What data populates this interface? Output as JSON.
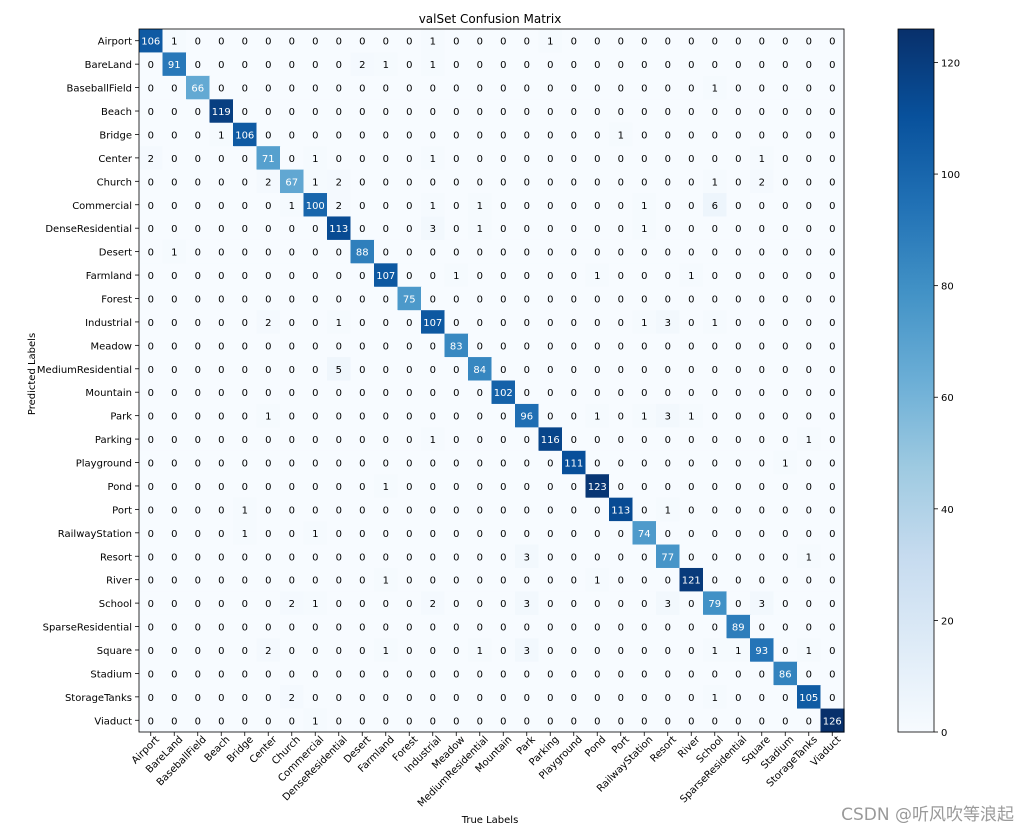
{
  "chart_data": {
    "type": "heatmap",
    "title": "valSet Confusion Matrix",
    "xlabel": "True Labels",
    "ylabel": "Predicted Labels",
    "labels": [
      "Airport",
      "BareLand",
      "BaseballField",
      "Beach",
      "Bridge",
      "Center",
      "Church",
      "Commercial",
      "DenseResidential",
      "Desert",
      "Farmland",
      "Forest",
      "Industrial",
      "Meadow",
      "MediumResidential",
      "Mountain",
      "Park",
      "Parking",
      "Playground",
      "Pond",
      "Port",
      "RailwayStation",
      "Resort",
      "River",
      "School",
      "SparseResidential",
      "Square",
      "Stadium",
      "StorageTanks",
      "Viaduct"
    ],
    "matrix": [
      [
        106,
        1,
        0,
        0,
        0,
        0,
        0,
        0,
        0,
        0,
        0,
        0,
        1,
        0,
        0,
        0,
        0,
        1,
        0,
        0,
        0,
        0,
        0,
        0,
        0,
        0,
        0,
        0,
        0,
        0
      ],
      [
        0,
        91,
        0,
        0,
        0,
        0,
        0,
        0,
        0,
        2,
        1,
        0,
        1,
        0,
        0,
        0,
        0,
        0,
        0,
        0,
        0,
        0,
        0,
        0,
        0,
        0,
        0,
        0,
        0,
        0
      ],
      [
        0,
        0,
        66,
        0,
        0,
        0,
        0,
        0,
        0,
        0,
        0,
        0,
        0,
        0,
        0,
        0,
        0,
        0,
        0,
        0,
        0,
        0,
        0,
        0,
        1,
        0,
        0,
        0,
        0,
        0
      ],
      [
        0,
        0,
        0,
        119,
        0,
        0,
        0,
        0,
        0,
        0,
        0,
        0,
        0,
        0,
        0,
        0,
        0,
        0,
        0,
        0,
        0,
        0,
        0,
        0,
        0,
        0,
        0,
        0,
        0,
        0
      ],
      [
        0,
        0,
        0,
        1,
        106,
        0,
        0,
        0,
        0,
        0,
        0,
        0,
        0,
        0,
        0,
        0,
        0,
        0,
        0,
        0,
        1,
        0,
        0,
        0,
        0,
        0,
        0,
        0,
        0,
        0
      ],
      [
        2,
        0,
        0,
        0,
        0,
        71,
        0,
        1,
        0,
        0,
        0,
        0,
        1,
        0,
        0,
        0,
        0,
        0,
        0,
        0,
        0,
        0,
        0,
        0,
        0,
        0,
        1,
        0,
        0,
        0
      ],
      [
        0,
        0,
        0,
        0,
        0,
        2,
        67,
        1,
        2,
        0,
        0,
        0,
        0,
        0,
        0,
        0,
        0,
        0,
        0,
        0,
        0,
        0,
        0,
        0,
        1,
        0,
        2,
        0,
        0,
        0
      ],
      [
        0,
        0,
        0,
        0,
        0,
        0,
        1,
        100,
        2,
        0,
        0,
        0,
        1,
        0,
        1,
        0,
        0,
        0,
        0,
        0,
        0,
        1,
        0,
        0,
        6,
        0,
        0,
        0,
        0,
        0
      ],
      [
        0,
        0,
        0,
        0,
        0,
        0,
        0,
        0,
        113,
        0,
        0,
        0,
        3,
        0,
        1,
        0,
        0,
        0,
        0,
        0,
        0,
        1,
        0,
        0,
        0,
        0,
        0,
        0,
        0,
        0
      ],
      [
        0,
        1,
        0,
        0,
        0,
        0,
        0,
        0,
        0,
        88,
        0,
        0,
        0,
        0,
        0,
        0,
        0,
        0,
        0,
        0,
        0,
        0,
        0,
        0,
        0,
        0,
        0,
        0,
        0,
        0
      ],
      [
        0,
        0,
        0,
        0,
        0,
        0,
        0,
        0,
        0,
        0,
        107,
        0,
        0,
        1,
        0,
        0,
        0,
        0,
        0,
        1,
        0,
        0,
        0,
        1,
        0,
        0,
        0,
        0,
        0,
        0
      ],
      [
        0,
        0,
        0,
        0,
        0,
        0,
        0,
        0,
        0,
        0,
        0,
        75,
        0,
        0,
        0,
        0,
        0,
        0,
        0,
        0,
        0,
        0,
        0,
        0,
        0,
        0,
        0,
        0,
        0,
        0
      ],
      [
        0,
        0,
        0,
        0,
        0,
        2,
        0,
        0,
        1,
        0,
        0,
        0,
        107,
        0,
        0,
        0,
        0,
        0,
        0,
        0,
        0,
        1,
        3,
        0,
        1,
        0,
        0,
        0,
        0,
        0
      ],
      [
        0,
        0,
        0,
        0,
        0,
        0,
        0,
        0,
        0,
        0,
        0,
        0,
        0,
        83,
        0,
        0,
        0,
        0,
        0,
        0,
        0,
        0,
        0,
        0,
        0,
        0,
        0,
        0,
        0,
        0
      ],
      [
        0,
        0,
        0,
        0,
        0,
        0,
        0,
        0,
        5,
        0,
        0,
        0,
        0,
        0,
        84,
        0,
        0,
        0,
        0,
        0,
        0,
        0,
        0,
        0,
        0,
        0,
        0,
        0,
        0,
        0
      ],
      [
        0,
        0,
        0,
        0,
        0,
        0,
        0,
        0,
        0,
        0,
        0,
        0,
        0,
        0,
        0,
        102,
        0,
        0,
        0,
        0,
        0,
        0,
        0,
        0,
        0,
        0,
        0,
        0,
        0,
        0
      ],
      [
        0,
        0,
        0,
        0,
        0,
        1,
        0,
        0,
        0,
        0,
        0,
        0,
        0,
        0,
        0,
        0,
        96,
        0,
        0,
        1,
        0,
        1,
        3,
        1,
        0,
        0,
        0,
        0,
        0,
        0
      ],
      [
        0,
        0,
        0,
        0,
        0,
        0,
        0,
        0,
        0,
        0,
        0,
        0,
        1,
        0,
        0,
        0,
        0,
        116,
        0,
        0,
        0,
        0,
        0,
        0,
        0,
        0,
        0,
        0,
        1,
        0
      ],
      [
        0,
        0,
        0,
        0,
        0,
        0,
        0,
        0,
        0,
        0,
        0,
        0,
        0,
        0,
        0,
        0,
        0,
        0,
        111,
        0,
        0,
        0,
        0,
        0,
        0,
        0,
        0,
        1,
        0,
        0
      ],
      [
        0,
        0,
        0,
        0,
        0,
        0,
        0,
        0,
        0,
        0,
        1,
        0,
        0,
        0,
        0,
        0,
        0,
        0,
        0,
        123,
        0,
        0,
        0,
        0,
        0,
        0,
        0,
        0,
        0,
        0
      ],
      [
        0,
        0,
        0,
        0,
        1,
        0,
        0,
        0,
        0,
        0,
        0,
        0,
        0,
        0,
        0,
        0,
        0,
        0,
        0,
        0,
        113,
        0,
        1,
        0,
        0,
        0,
        0,
        0,
        0,
        0
      ],
      [
        0,
        0,
        0,
        0,
        1,
        0,
        0,
        1,
        0,
        0,
        0,
        0,
        0,
        0,
        0,
        0,
        0,
        0,
        0,
        0,
        0,
        74,
        0,
        0,
        0,
        0,
        0,
        0,
        0,
        0
      ],
      [
        0,
        0,
        0,
        0,
        0,
        0,
        0,
        0,
        0,
        0,
        0,
        0,
        0,
        0,
        0,
        0,
        3,
        0,
        0,
        0,
        0,
        0,
        77,
        0,
        0,
        0,
        0,
        0,
        1,
        0
      ],
      [
        0,
        0,
        0,
        0,
        0,
        0,
        0,
        0,
        0,
        0,
        1,
        0,
        0,
        0,
        0,
        0,
        0,
        0,
        0,
        1,
        0,
        0,
        0,
        121,
        0,
        0,
        0,
        0,
        0,
        0
      ],
      [
        0,
        0,
        0,
        0,
        0,
        0,
        2,
        1,
        0,
        0,
        0,
        0,
        2,
        0,
        0,
        0,
        3,
        0,
        0,
        0,
        0,
        0,
        3,
        0,
        79,
        0,
        3,
        0,
        0,
        0
      ],
      [
        0,
        0,
        0,
        0,
        0,
        0,
        0,
        0,
        0,
        0,
        0,
        0,
        0,
        0,
        0,
        0,
        0,
        0,
        0,
        0,
        0,
        0,
        0,
        0,
        0,
        89,
        0,
        0,
        0,
        0
      ],
      [
        0,
        0,
        0,
        0,
        0,
        2,
        0,
        0,
        0,
        0,
        1,
        0,
        0,
        0,
        1,
        0,
        3,
        0,
        0,
        0,
        0,
        0,
        0,
        0,
        1,
        1,
        93,
        0,
        1,
        0
      ],
      [
        0,
        0,
        0,
        0,
        0,
        0,
        0,
        0,
        0,
        0,
        0,
        0,
        0,
        0,
        0,
        0,
        0,
        0,
        0,
        0,
        0,
        0,
        0,
        0,
        0,
        0,
        0,
        86,
        0,
        0
      ],
      [
        0,
        0,
        0,
        0,
        0,
        0,
        2,
        0,
        0,
        0,
        0,
        0,
        0,
        0,
        0,
        0,
        0,
        0,
        0,
        0,
        0,
        0,
        0,
        0,
        1,
        0,
        0,
        0,
        105,
        0
      ],
      [
        0,
        0,
        0,
        0,
        0,
        0,
        0,
        1,
        0,
        0,
        0,
        0,
        0,
        0,
        0,
        0,
        0,
        0,
        0,
        0,
        0,
        0,
        0,
        0,
        0,
        0,
        0,
        0,
        0,
        126
      ]
    ],
    "colorbar": {
      "min": 0,
      "max": 126,
      "ticks": [
        0,
        20,
        40,
        60,
        80,
        100,
        120
      ]
    },
    "colormap": [
      "#f7fbff",
      "#deebf7",
      "#c6dbef",
      "#9ecae1",
      "#6baed6",
      "#4292c6",
      "#2171b5",
      "#08519c",
      "#08306b"
    ]
  },
  "watermark": "CSDN @听风吹等浪起"
}
